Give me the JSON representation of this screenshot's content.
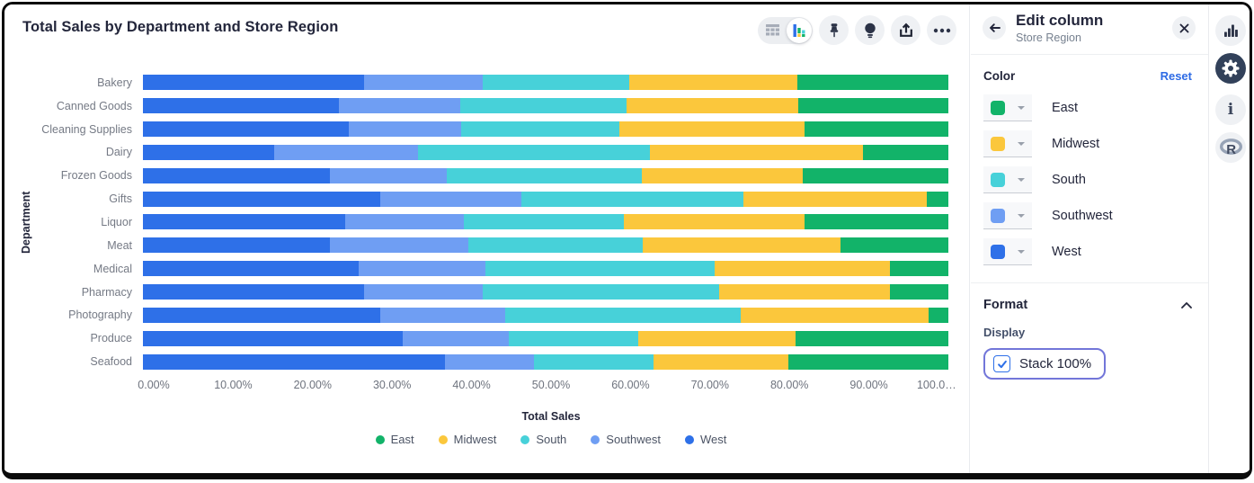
{
  "chart_panel": {
    "title": "Total Sales by Department and Store Region",
    "actions": [
      {
        "icon": "table-view-icon"
      },
      {
        "icon": "chart-view-icon",
        "active": true
      },
      {
        "icon": "pin-icon"
      },
      {
        "icon": "lightbulb-icon"
      },
      {
        "icon": "share-icon"
      },
      {
        "icon": "ellipsis-icon"
      }
    ]
  },
  "chart_data": {
    "type": "bar",
    "stacked": "100%",
    "orientation": "horizontal",
    "title": "Total Sales by Department and Store Region",
    "xlabel": "Total Sales",
    "ylabel": "Department",
    "xlim": [
      0,
      100
    ],
    "grid": false,
    "legend_position": "bottom",
    "categories": [
      "Bakery",
      "Canned Goods",
      "Cleaning Supplies",
      "Dairy",
      "Frozen Goods",
      "Gifts",
      "Liquor",
      "Meat",
      "Medical",
      "Pharmacy",
      "Photography",
      "Produce",
      "Seafood"
    ],
    "series": [
      {
        "name": "West",
        "color": "#2E70E8",
        "values": [
          27.5,
          24.3,
          25.6,
          16.3,
          23.2,
          29.5,
          25.1,
          23.2,
          26.8,
          27.5,
          29.5,
          32.2,
          37.5
        ]
      },
      {
        "name": "Southwest",
        "color": "#6F9EF3",
        "values": [
          14.7,
          15.1,
          13.9,
          17.9,
          14.5,
          17.5,
          14.7,
          17.2,
          15.7,
          14.7,
          15.5,
          13.2,
          11.0
        ]
      },
      {
        "name": "South",
        "color": "#47D1D9",
        "values": [
          18.2,
          20.7,
          19.6,
          28.8,
          24.2,
          27.6,
          19.9,
          21.6,
          28.5,
          29.3,
          29.2,
          16.1,
          14.9
        ]
      },
      {
        "name": "Midwest",
        "color": "#FBC73C",
        "values": [
          20.8,
          21.3,
          23.0,
          26.4,
          20.0,
          22.7,
          22.5,
          24.6,
          21.7,
          21.2,
          23.3,
          19.5,
          16.7
        ]
      },
      {
        "name": "East",
        "color": "#12B369",
        "values": [
          18.8,
          18.6,
          17.9,
          10.6,
          18.1,
          2.7,
          17.8,
          13.4,
          7.3,
          7.3,
          2.5,
          19.0,
          19.9
        ]
      }
    ],
    "legend_order": [
      "East",
      "Midwest",
      "South",
      "Southwest",
      "West"
    ],
    "x_ticks": [
      "0.00%",
      "10.00%",
      "20.00%",
      "30.00%",
      "40.00%",
      "50.00%",
      "60.00%",
      "70.00%",
      "80.00%",
      "90.00%",
      "100.0…"
    ]
  },
  "sidebar": {
    "title": "Edit column",
    "subtitle": "Store Region",
    "color_section": {
      "label": "Color",
      "reset_label": "Reset",
      "items": [
        {
          "name": "East",
          "color": "#12B369"
        },
        {
          "name": "Midwest",
          "color": "#FBC73C"
        },
        {
          "name": "South",
          "color": "#47D1D9"
        },
        {
          "name": "Southwest",
          "color": "#6F9EF3"
        },
        {
          "name": "West",
          "color": "#2E70E8"
        }
      ]
    },
    "format_section": {
      "label": "Format",
      "display_label": "Display",
      "stack_checkbox": {
        "label": "Stack 100%",
        "checked": true
      }
    }
  },
  "rail": {
    "items": [
      {
        "icon": "bar-chart-icon"
      },
      {
        "icon": "gear-icon",
        "active": true
      },
      {
        "icon": "info-icon"
      },
      {
        "icon": "r-logo-icon"
      }
    ]
  },
  "colors": {
    "accent_blue": "#2E70E8",
    "link_blue": "#2E6BE5",
    "focus_ring": "#7276D9",
    "text_dark": "#23263B"
  }
}
